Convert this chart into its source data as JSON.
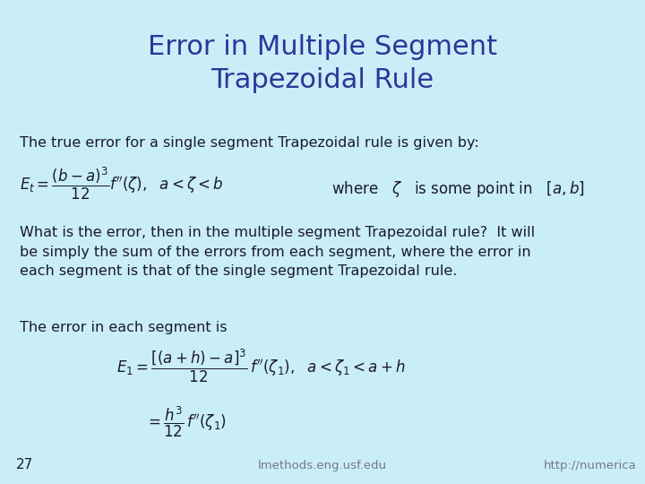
{
  "background_color": "#caeef8",
  "title": "Error in Multiple Segment\nTrapezoidal Rule",
  "title_color": "#2d3699",
  "title_fontsize": 22,
  "body_text_color": "#1a1a2e",
  "body_fontsize": 11.5,
  "formula_fontsize": 12,
  "page_number": "27",
  "footer_center": "lmethods.eng.usf.edu",
  "footer_right": "http://numerica",
  "line1": "The true error for a single segment Trapezoidal rule is given by:",
  "line3_paragraph": "What is the error, then in the multiple segment Trapezoidal rule?  It will\nbe simply the sum of the errors from each segment, where the error in\neach segment is that of the single segment Trapezoidal rule.",
  "line4": "The error in each segment is"
}
